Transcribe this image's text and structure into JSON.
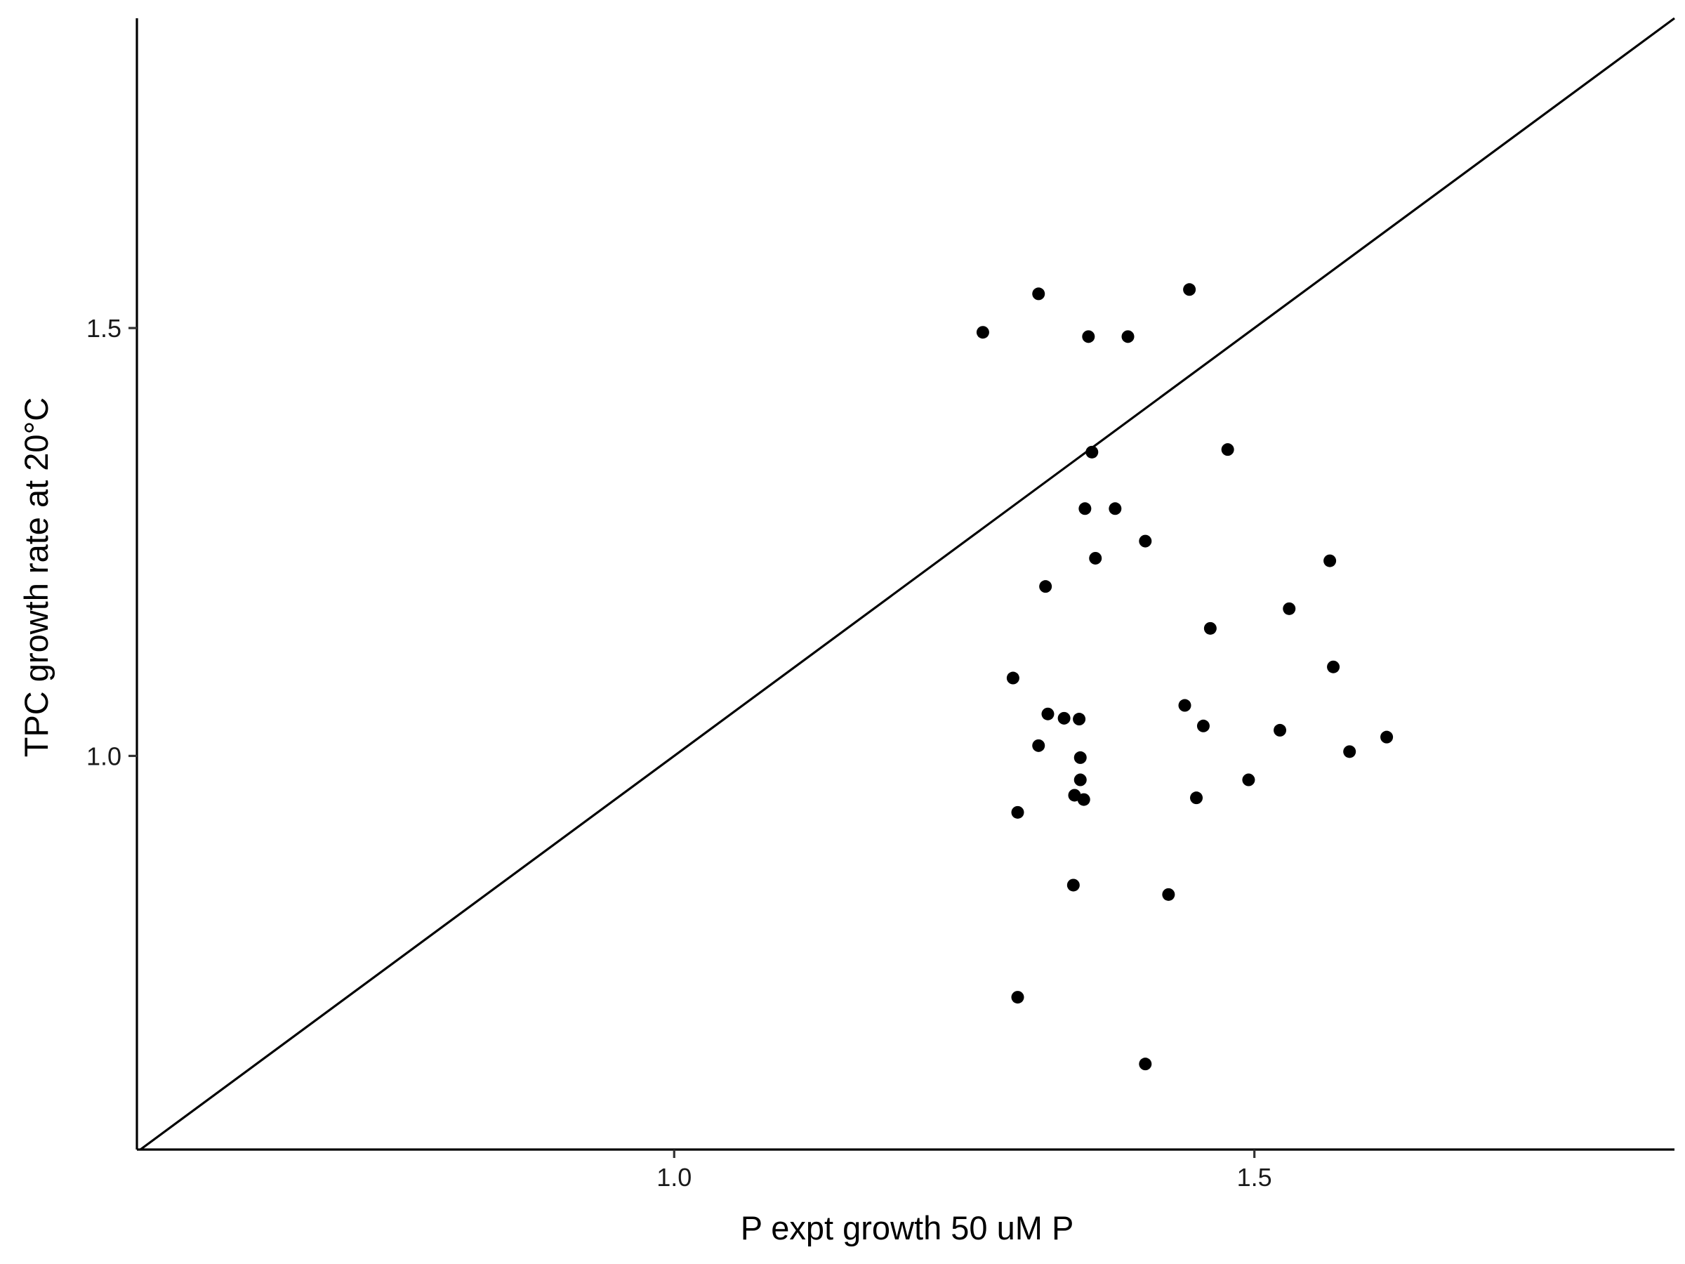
{
  "chart_data": {
    "type": "scatter",
    "title": "",
    "xlabel": "P expt growth 50 uM P",
    "ylabel": "TPC growth rate at 20°C",
    "xlim": [
      0.537,
      1.862
    ],
    "ylim": [
      0.54,
      1.862
    ],
    "x_ticks": [
      1.0,
      1.5
    ],
    "x_tick_labels": [
      "1.0",
      "1.5"
    ],
    "y_ticks": [
      1.0,
      1.5
    ],
    "y_tick_labels": [
      "1.0",
      "1.5"
    ],
    "grid": false,
    "legend": "none",
    "reference_line": {
      "type": "identity",
      "slope": 1,
      "intercept": 0
    },
    "point_color": "#000000",
    "line_color": "#000000",
    "points": [
      {
        "x": 1.266,
        "y": 1.495
      },
      {
        "x": 1.314,
        "y": 1.54
      },
      {
        "x": 1.357,
        "y": 1.49
      },
      {
        "x": 1.391,
        "y": 1.49
      },
      {
        "x": 1.444,
        "y": 1.545
      },
      {
        "x": 1.36,
        "y": 1.355
      },
      {
        "x": 1.477,
        "y": 1.358
      },
      {
        "x": 1.354,
        "y": 1.289
      },
      {
        "x": 1.38,
        "y": 1.289
      },
      {
        "x": 1.406,
        "y": 1.251
      },
      {
        "x": 1.363,
        "y": 1.231
      },
      {
        "x": 1.32,
        "y": 1.198
      },
      {
        "x": 1.565,
        "y": 1.228
      },
      {
        "x": 1.53,
        "y": 1.172
      },
      {
        "x": 1.462,
        "y": 1.149
      },
      {
        "x": 1.568,
        "y": 1.104
      },
      {
        "x": 1.292,
        "y": 1.091
      },
      {
        "x": 1.322,
        "y": 1.049
      },
      {
        "x": 1.336,
        "y": 1.044
      },
      {
        "x": 1.349,
        "y": 1.043
      },
      {
        "x": 1.44,
        "y": 1.059
      },
      {
        "x": 1.456,
        "y": 1.035
      },
      {
        "x": 1.522,
        "y": 1.03
      },
      {
        "x": 1.614,
        "y": 1.022
      },
      {
        "x": 1.314,
        "y": 1.012
      },
      {
        "x": 1.35,
        "y": 0.998
      },
      {
        "x": 1.582,
        "y": 1.005
      },
      {
        "x": 1.35,
        "y": 0.972
      },
      {
        "x": 1.495,
        "y": 0.972
      },
      {
        "x": 1.296,
        "y": 0.934
      },
      {
        "x": 1.345,
        "y": 0.954
      },
      {
        "x": 1.353,
        "y": 0.949
      },
      {
        "x": 1.45,
        "y": 0.951
      },
      {
        "x": 1.344,
        "y": 0.849
      },
      {
        "x": 1.426,
        "y": 0.838
      },
      {
        "x": 1.296,
        "y": 0.718
      },
      {
        "x": 1.406,
        "y": 0.64
      }
    ]
  }
}
